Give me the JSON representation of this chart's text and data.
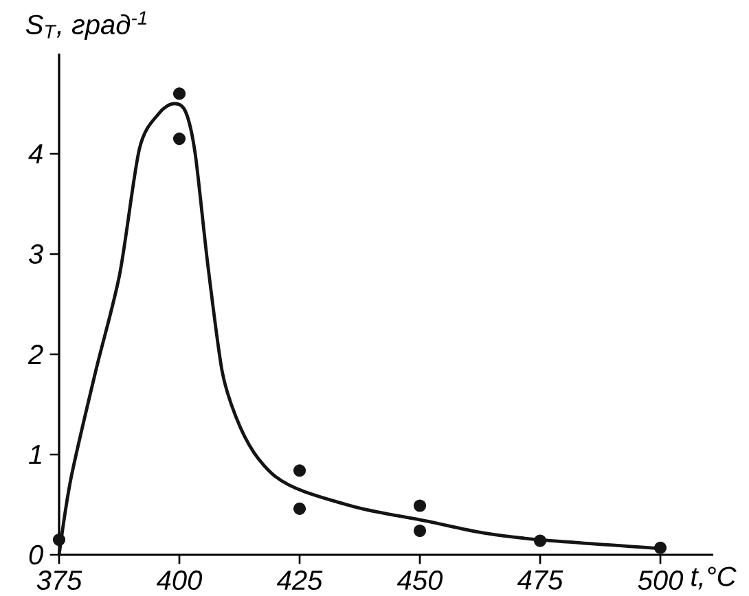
{
  "chart_data": {
    "type": "scatter",
    "xlabel": "t,°C",
    "ylabel": "S$_{T}$, град$^{-1}$",
    "xlim": [
      375,
      511
    ],
    "ylim": [
      0,
      5
    ],
    "xticks": [
      375,
      400,
      425,
      450,
      475,
      500
    ],
    "yticks": [
      0,
      1,
      2,
      3,
      4
    ],
    "series": [
      {
        "color": "#141414",
        "marker": "circle",
        "x": [
          375,
          400,
          400,
          425,
          425,
          450,
          450,
          475,
          500
        ],
        "values": [
          0.15,
          4.6,
          4.15,
          0.84,
          0.46,
          0.49,
          0.24,
          0.14,
          0.07
        ]
      },
      {
        "type": "line",
        "color": "#141414",
        "marker": "none",
        "line_style": "solid",
        "x": [
          375,
          377.5,
          382.6,
          387.6,
          391.7,
          395.7,
          398.8,
          401.3,
          403.3,
          405.9,
          408.9,
          411.9,
          415.5,
          420,
          426,
          438,
          451,
          463,
          475,
          501
        ],
        "values": [
          0,
          0.77,
          1.83,
          2.8,
          4.05,
          4.4,
          4.5,
          4.42,
          4.0,
          2.9,
          1.83,
          1.36,
          1.02,
          0.78,
          0.63,
          0.46,
          0.34,
          0.22,
          0.15,
          0.06
        ]
      }
    ]
  }
}
